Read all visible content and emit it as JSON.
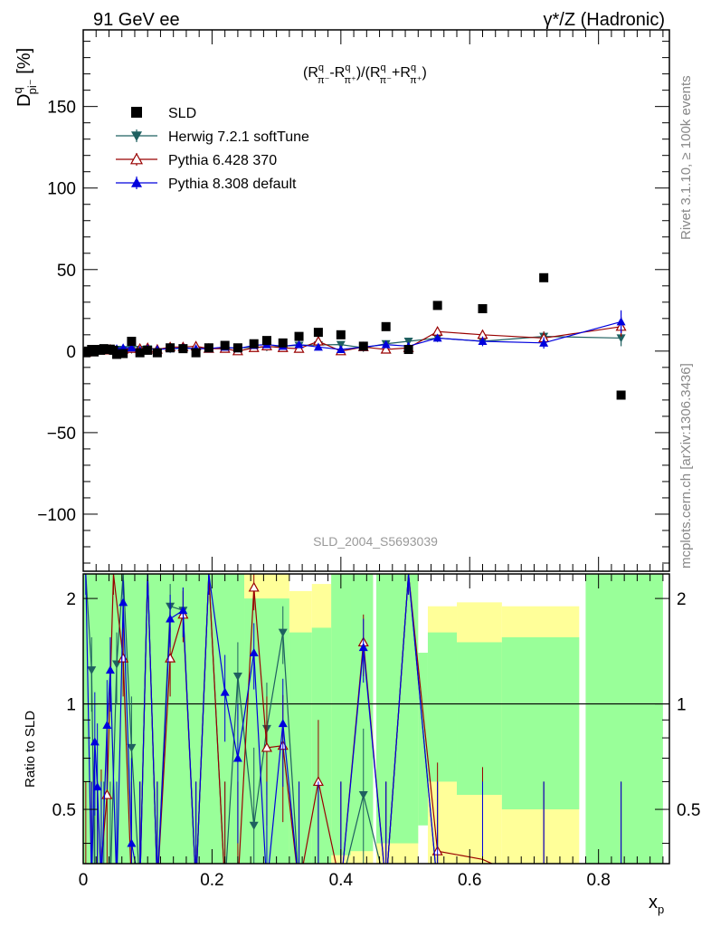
{
  "header": {
    "left": "91 GeV ee",
    "right": "γ*/Z (Hadronic)"
  },
  "side": {
    "rivet": "Rivet 3.1.10, ≥ 100k events",
    "mcplots": "mcplots.cern.ch [arXiv:1306.3436]"
  },
  "watermark": "SLD_2004_S5693039",
  "formula": {
    "open": "(R",
    "sup1": "q",
    "sub1": "π⁻",
    "minus": "-R",
    "sup2": "q",
    "sub2": "π⁺",
    "mid": ")/(R",
    "sup3": "q",
    "sub3": "π⁻",
    "plus": "+R",
    "sup4": "q",
    "sub4": "π⁺",
    "close": ")"
  },
  "ylabel": {
    "main": "D",
    "sup": "q",
    "sub": "pi⁻",
    "unit": " [%]"
  },
  "ratio_ylabel": "Ratio to SLD",
  "xlabel": {
    "main": "x",
    "sub": "p"
  },
  "colors": {
    "sld": "#000000",
    "herwig": "#1f6060",
    "pythia6": "#990000",
    "pythia8": "#0000dd",
    "band_inner": "#99ff99",
    "band_outer": "#ffff99"
  },
  "chart_data": [
    {
      "type": "scatter",
      "name": "main",
      "xlim": [
        0,
        0.91
      ],
      "ylim": [
        -135,
        197
      ],
      "yticks": [
        -100,
        -50,
        0,
        50,
        100,
        150
      ],
      "ytick_labels": [
        "−100",
        "−50",
        "0",
        "50",
        "100",
        "150"
      ],
      "xticks": [
        0,
        0.2,
        0.4,
        0.6,
        0.8
      ],
      "xtick_labels": [
        "0",
        "0.2",
        "0.4",
        "0.6",
        "0.8"
      ],
      "legend": [
        {
          "key": "sld",
          "label": "SLD",
          "marker": "square"
        },
        {
          "key": "herwig",
          "label": "Herwig 7.2.1 softTune",
          "marker": "tri-down"
        },
        {
          "key": "pythia6",
          "label": "Pythia 6.428 370",
          "marker": "tri-up-open"
        },
        {
          "key": "pythia8",
          "label": "Pythia 8.308 default",
          "marker": "tri-up"
        }
      ],
      "sld": {
        "x": [
          0.004,
          0.008,
          0.013,
          0.017,
          0.022,
          0.027,
          0.032,
          0.037,
          0.042,
          0.047,
          0.052,
          0.062,
          0.075,
          0.088,
          0.1,
          0.115,
          0.135,
          0.155,
          0.175,
          0.195,
          0.22,
          0.24,
          0.265,
          0.285,
          0.31,
          0.335,
          0.365,
          0.4,
          0.435,
          0.47,
          0.505,
          0.55,
          0.62,
          0.715,
          0.835
        ],
        "y": [
          -1,
          0,
          1,
          -0.5,
          1,
          0.5,
          1.5,
          1,
          1.2,
          0.5,
          -2,
          -1.5,
          6,
          -1,
          0.5,
          -1,
          2,
          1.5,
          -1,
          2,
          3.5,
          2,
          4.5,
          6.5,
          5,
          9,
          11.5,
          10,
          3,
          15,
          1,
          28,
          26,
          45,
          -27
        ]
      },
      "herwig": {
        "x": [
          0.004,
          0.013,
          0.022,
          0.032,
          0.042,
          0.052,
          0.062,
          0.075,
          0.088,
          0.1,
          0.135,
          0.155,
          0.195,
          0.24,
          0.285,
          0.31,
          0.335,
          0.365,
          0.4,
          0.435,
          0.47,
          0.505,
          0.55,
          0.62,
          0.715,
          0.835
        ],
        "y": [
          -0.5,
          0,
          0.3,
          0.5,
          0.8,
          1,
          0.9,
          1,
          1,
          1.3,
          1.4,
          1.7,
          1.8,
          2,
          2.5,
          3,
          3.5,
          3.8,
          4,
          2,
          4.5,
          6,
          8,
          6,
          9,
          8
        ],
        "err": [
          0.5,
          0.4,
          0.4,
          0.4,
          0.4,
          0.4,
          0.4,
          0.4,
          0.4,
          0.5,
          0.5,
          0.5,
          0.5,
          0.6,
          0.6,
          0.6,
          0.7,
          0.7,
          0.8,
          0.9,
          1.0,
          1.2,
          1.5,
          2.0,
          3.0,
          5.0
        ]
      },
      "pythia6": {
        "x": [
          0.004,
          0.013,
          0.022,
          0.032,
          0.042,
          0.052,
          0.062,
          0.075,
          0.088,
          0.1,
          0.115,
          0.135,
          0.155,
          0.175,
          0.195,
          0.22,
          0.24,
          0.265,
          0.285,
          0.31,
          0.335,
          0.365,
          0.4,
          0.435,
          0.47,
          0.505,
          0.55,
          0.62,
          0.715,
          0.835
        ],
        "y": [
          -1,
          0,
          0.5,
          0.5,
          1,
          0.5,
          1,
          1.5,
          1.5,
          2,
          1,
          2.5,
          2.5,
          3,
          1.5,
          1.5,
          0,
          2,
          3,
          2,
          1.5,
          6,
          0,
          2.5,
          1,
          2,
          12,
          10,
          8,
          15
        ],
        "err": [
          0.6,
          0.5,
          0.5,
          0.5,
          0.5,
          0.5,
          0.5,
          0.5,
          0.5,
          0.6,
          0.6,
          0.6,
          0.6,
          0.7,
          0.7,
          0.8,
          0.8,
          0.9,
          0.9,
          1.0,
          1.0,
          1.2,
          1.3,
          1.5,
          1.6,
          1.8,
          2.5,
          3.0,
          4.0,
          6.0
        ]
      },
      "pythia8": {
        "x": [
          0.004,
          0.013,
          0.022,
          0.032,
          0.042,
          0.052,
          0.062,
          0.075,
          0.088,
          0.1,
          0.115,
          0.135,
          0.155,
          0.175,
          0.195,
          0.22,
          0.24,
          0.265,
          0.285,
          0.31,
          0.335,
          0.365,
          0.4,
          0.435,
          0.47,
          0.505,
          0.55,
          0.62,
          0.715,
          0.835
        ],
        "y": [
          -0.5,
          0.5,
          1,
          1,
          1,
          1.5,
          2,
          2,
          0.5,
          1.5,
          1,
          1.5,
          2,
          1.5,
          1.5,
          2.5,
          1.5,
          3.5,
          4,
          3,
          4,
          2.5,
          1,
          2.5,
          4,
          3,
          8,
          6,
          5,
          18
        ],
        "err": [
          0.5,
          0.4,
          0.4,
          0.4,
          0.4,
          0.4,
          0.4,
          0.4,
          0.4,
          0.5,
          0.5,
          0.5,
          0.5,
          0.6,
          0.6,
          0.7,
          0.7,
          0.8,
          0.8,
          0.9,
          1.0,
          1.1,
          1.2,
          1.3,
          1.5,
          1.7,
          2.2,
          3.0,
          3.5,
          7.0
        ]
      }
    },
    {
      "type": "scatter",
      "name": "ratio",
      "xlim": [
        0,
        0.91
      ],
      "ylim": [
        0.35,
        2.35
      ],
      "yticks": [
        0.5,
        1,
        2
      ],
      "ytick_labels": [
        "0.5",
        "1",
        "2"
      ],
      "reference": 1,
      "band_inner": [
        {
          "x0": 0.0,
          "x1": 0.25,
          "lo": 0.35,
          "hi": 2.35
        },
        {
          "x0": 0.25,
          "x1": 0.32,
          "lo": 0.35,
          "hi": 2.0
        },
        {
          "x0": 0.32,
          "x1": 0.355,
          "lo": 0.35,
          "hi": 1.6
        },
        {
          "x0": 0.355,
          "x1": 0.385,
          "lo": 0.35,
          "hi": 1.65
        },
        {
          "x0": 0.385,
          "x1": 0.415,
          "lo": 0.37,
          "hi": 2.35
        },
        {
          "x0": 0.415,
          "x1": 0.45,
          "lo": 0.38,
          "hi": 2.35
        },
        {
          "x0": 0.455,
          "x1": 0.52,
          "lo": 0.4,
          "hi": 2.35
        },
        {
          "x0": 0.52,
          "x1": 0.535,
          "lo": 0.45,
          "hi": 1.4
        },
        {
          "x0": 0.535,
          "x1": 0.58,
          "lo": 0.6,
          "hi": 1.6
        },
        {
          "x0": 0.58,
          "x1": 0.65,
          "lo": 0.55,
          "hi": 1.5
        },
        {
          "x0": 0.65,
          "x1": 0.77,
          "lo": 0.5,
          "hi": 1.55
        },
        {
          "x0": 0.78,
          "x1": 0.9,
          "lo": 0.35,
          "hi": 2.35
        }
      ],
      "band_outer": [
        {
          "x0": 0.0,
          "x1": 0.1,
          "lo": 0.35,
          "hi": 2.35
        },
        {
          "x0": 0.1,
          "x1": 0.25,
          "lo": 0.35,
          "hi": 2.35
        },
        {
          "x0": 0.25,
          "x1": 0.32,
          "lo": 0.35,
          "hi": 2.35
        },
        {
          "x0": 0.32,
          "x1": 0.355,
          "lo": 0.35,
          "hi": 2.1
        },
        {
          "x0": 0.355,
          "x1": 0.385,
          "lo": 0.35,
          "hi": 2.2
        },
        {
          "x0": 0.385,
          "x1": 0.45,
          "lo": 0.35,
          "hi": 2.35
        },
        {
          "x0": 0.455,
          "x1": 0.52,
          "lo": 0.35,
          "hi": 2.35
        },
        {
          "x0": 0.535,
          "x1": 0.58,
          "lo": 0.35,
          "hi": 1.9
        },
        {
          "x0": 0.58,
          "x1": 0.65,
          "lo": 0.35,
          "hi": 1.95
        },
        {
          "x0": 0.65,
          "x1": 0.77,
          "lo": 0.35,
          "hi": 1.9
        }
      ],
      "herwig": {
        "x": [
          0.004,
          0.013,
          0.018,
          0.022,
          0.032,
          0.042,
          0.052,
          0.062,
          0.075,
          0.088,
          0.1,
          0.115,
          0.135,
          0.155,
          0.175,
          0.195,
          0.22,
          0.24,
          0.265,
          0.285,
          0.31,
          0.335,
          0.365,
          0.4,
          0.435,
          0.47,
          0.505,
          0.55,
          0.62,
          0.715,
          0.835
        ],
        "y": [
          2.35,
          1.25,
          0.3,
          0.3,
          0.3,
          0.3,
          1.3,
          2.35,
          0.75,
          0.3,
          2.35,
          0.3,
          1.9,
          1.85,
          0.3,
          2.35,
          0.3,
          1.2,
          0.45,
          0.85,
          1.6,
          0.3,
          0.3,
          0.3,
          0.55,
          0.3,
          2.35,
          0.3,
          0.3,
          0.3,
          0.3
        ],
        "err": [
          0.3,
          0.3,
          0.3,
          0.3,
          0.3,
          0.3,
          0.3,
          0.3,
          0.3,
          0.3,
          0.3,
          0.3,
          0.3,
          0.3,
          0.3,
          0.3,
          0.3,
          0.3,
          0.3,
          0.3,
          0.3,
          0.3,
          0.3,
          0.3,
          0.3,
          0.3,
          0.3,
          0.3,
          0.3,
          0.3,
          0.3
        ]
      },
      "pythia6": {
        "x": [
          0.004,
          0.013,
          0.022,
          0.028,
          0.037,
          0.047,
          0.062,
          0.075,
          0.088,
          0.1,
          0.115,
          0.135,
          0.155,
          0.175,
          0.195,
          0.22,
          0.24,
          0.265,
          0.285,
          0.31,
          0.335,
          0.365,
          0.4,
          0.435,
          0.47,
          0.505,
          0.55,
          0.62,
          0.715,
          0.835
        ],
        "y": [
          0.3,
          0.3,
          0.3,
          0.35,
          0.55,
          2.35,
          1.35,
          0.3,
          0.3,
          2.35,
          0.3,
          1.35,
          1.8,
          0.3,
          2.35,
          0.3,
          0.3,
          2.15,
          0.75,
          0.76,
          0.3,
          0.6,
          0.3,
          1.5,
          0.3,
          2.35,
          0.38,
          0.36,
          0.3,
          0.3
        ],
        "err": [
          0.3,
          0.3,
          0.3,
          0.3,
          0.3,
          0.3,
          0.3,
          0.3,
          0.3,
          0.3,
          0.3,
          0.3,
          0.3,
          0.3,
          0.3,
          0.3,
          0.3,
          0.3,
          0.3,
          0.3,
          0.3,
          0.3,
          0.3,
          0.3,
          0.3,
          0.3,
          0.3,
          0.3,
          0.3,
          0.3
        ]
      },
      "pythia8": {
        "x": [
          0.004,
          0.013,
          0.018,
          0.022,
          0.028,
          0.037,
          0.042,
          0.052,
          0.062,
          0.075,
          0.088,
          0.1,
          0.115,
          0.135,
          0.155,
          0.175,
          0.195,
          0.22,
          0.24,
          0.265,
          0.285,
          0.31,
          0.335,
          0.365,
          0.4,
          0.435,
          0.47,
          0.505,
          0.55,
          0.62,
          0.715,
          0.835
        ],
        "y": [
          2.35,
          0.3,
          0.78,
          0.58,
          0.3,
          0.87,
          1.25,
          0.3,
          1.95,
          0.4,
          0.3,
          2.35,
          0.3,
          1.75,
          1.85,
          0.3,
          2.35,
          1.08,
          0.7,
          1.4,
          0.3,
          0.88,
          0.3,
          0.3,
          0.3,
          1.45,
          0.3,
          2.35,
          0.3,
          0.3,
          0.3,
          0.3
        ],
        "err": [
          0.3,
          0.3,
          0.3,
          0.3,
          0.3,
          0.3,
          0.3,
          0.3,
          0.3,
          0.3,
          0.3,
          0.3,
          0.3,
          0.3,
          0.3,
          0.3,
          0.3,
          0.3,
          0.3,
          0.3,
          0.3,
          0.3,
          0.3,
          0.3,
          0.3,
          0.3,
          0.3,
          0.3,
          0.3,
          0.3,
          0.3,
          0.3
        ]
      }
    }
  ]
}
